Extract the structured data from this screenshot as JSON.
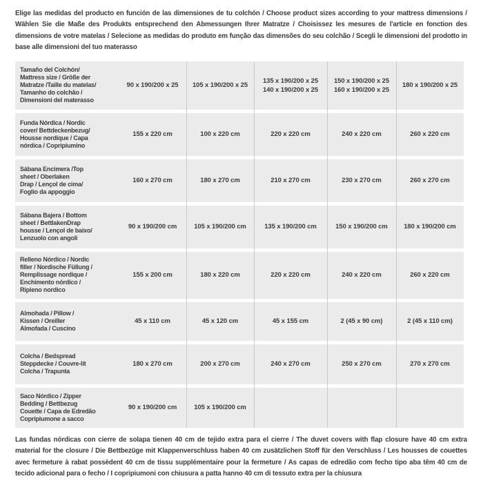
{
  "header": {
    "text": "Elige las medidas del producto en función de las dimensiones de tu colchón / Choose product sizes according to your mattress dimensions / Wählen Sie die Maße des Produkts entsprechend den Abmessungen Ihrer Matratze / Choisissez les mesures de l'article en fonction des dimensions de votre matelas / Selecione as medidas do produto em função das dimensões do seu colchão / Scegli le dimensioni del prodotto in base alle dimensioni del tuo materasso"
  },
  "table": {
    "rows": [
      {
        "label": "Tamaño del Colchón/\nMattress size / Größe der\nMatratze /Taille du matelas/\nTamanho do colchão /\nDimensioni del materasso",
        "values": [
          "90 x 190/200 x 25",
          "105 x 190/200 x 25",
          "135 x 190/200 x 25\n140 x 190/200 x 25",
          "150 x 190/200 x 25\n160 x 190/200 x 25",
          "180 x 190/200 x 25"
        ]
      },
      {
        "label": "Funda Nórdica / Nordic\ncover/ Bettdeckenbezug/\nHousse nordique / Capa\nnórdica / Copripiumino",
        "values": [
          "155 x 220 cm",
          "100 x 220 cm",
          "220 x 220 cm",
          "240 x 220 cm",
          "260 x 220 cm"
        ]
      },
      {
        "label": "Sábana Encimera /Top\nsheet / Oberlaken\nDrap / Lençol de cima/\nFoglio da appoggio",
        "values": [
          "160 x 270 cm",
          "180 x 270 cm",
          "210 x 270 cm",
          "230 x 270 cm",
          "260 x 270 cm"
        ]
      },
      {
        "label": "Sábana Bajera / Bottom\nsheet / BettlakenDrap\nhousse / Lençol de baixo/\nLenzuolo con angoli",
        "values": [
          "90 x 190/200 cm",
          "105 x 190/200 cm",
          "135 x 190/200 cm",
          "150 x 190/200 cm",
          "180 x 190/200 cm"
        ]
      },
      {
        "label": "Relleno Nórdico / Nordic\nfiller / Nordische Füllung /\nRemplissage nordique /\nEnchimento nórdico /\nRipieno nordico",
        "values": [
          "155 x 200 cm",
          "180 x 220 cm",
          "220 x 220 cm",
          "240 x 220 cm",
          "260 x 220 cm"
        ]
      },
      {
        "label": "Almohada / Pillow /\nKissen / Oreiller\nAlmofada / Cuscino",
        "values": [
          "45 x 110 cm",
          "45 x 120 cm",
          "45 x 155 cm",
          "2 (45 x 90 cm)",
          "2 (45 x 110 cm)"
        ]
      },
      {
        "label": "Colcha / Bedspread\nSteppdecke / Couvre-lit\nColcha / Trapunta",
        "values": [
          "180 x 270 cm",
          "200 x 270 cm",
          "240 x 270 cm",
          "250 x 270 cm",
          "270 x 270 cm"
        ]
      },
      {
        "label": "Saco Nórdico / Zipper\nBedding / Bettbezug\nCouette / Capa de Edredão\nCopripiumone a sacco",
        "values": [
          "90 x 190/200 cm",
          "105 x 190/200 cm",
          "",
          "",
          ""
        ]
      }
    ]
  },
  "footer": {
    "text": "Las fundas nórdicas con cierre de solapa tienen 40 cm de tejido extra para el cierre / The duvet covers with flap closure have 40 cm extra material for the closure / Die Bettbezüge mit Klappenverschluss haben 40 cm zusätzlichen Stoff für den Verschluss / Les housses de couettes avec fermeture à rabat possèdent 40 cm de tissu supplémentaire pour la fermeture / As capas de edredão com fecho tipo aba têm 40 cm de tecido adicional para o fecho / I copripiumoni con chiusura a patta hanno 40 cm di tessuto extra per la chiusura"
  },
  "colors": {
    "row_bg": "#ebebeb",
    "divider": "#c9c9c9",
    "text_dark": "#3b3b3b",
    "page_bg": "#ffffff"
  }
}
